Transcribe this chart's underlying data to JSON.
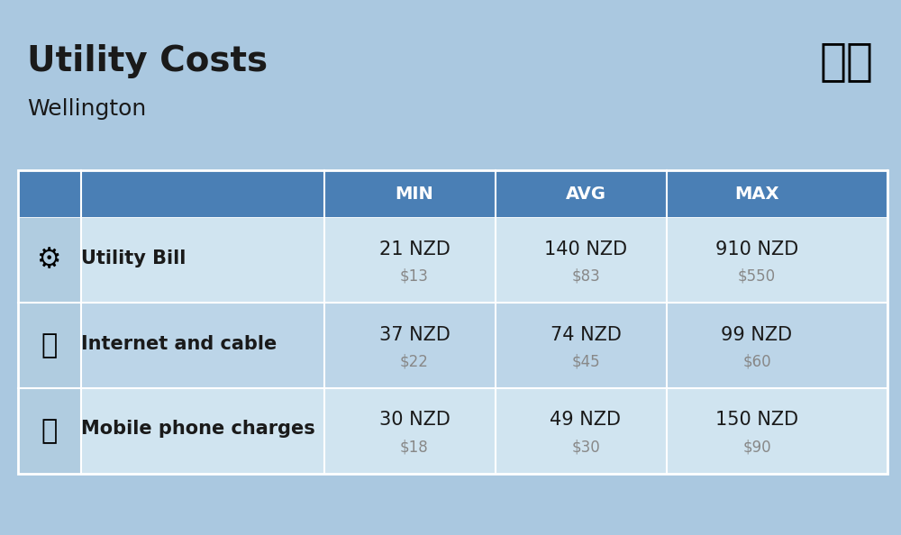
{
  "title": "Utility Costs",
  "subtitle": "Wellington",
  "background_color": "#aac8e0",
  "header_bg_color": "#4a7fb5",
  "header_text_color": "#ffffff",
  "row_colors": [
    "#d0e4f0",
    "#bcd5e8"
  ],
  "icon_col_color": "#b0cce0",
  "table_border_color": "#4a7fb5",
  "columns": [
    "",
    "",
    "MIN",
    "AVG",
    "MAX"
  ],
  "rows": [
    {
      "label": "Utility Bill",
      "min_nzd": "21 NZD",
      "min_usd": "$13",
      "avg_nzd": "140 NZD",
      "avg_usd": "$83",
      "max_nzd": "910 NZD",
      "max_usd": "$550"
    },
    {
      "label": "Internet and cable",
      "min_nzd": "37 NZD",
      "min_usd": "$22",
      "avg_nzd": "74 NZD",
      "avg_usd": "$45",
      "max_nzd": "99 NZD",
      "max_usd": "$60"
    },
    {
      "label": "Mobile phone charges",
      "min_nzd": "30 NZD",
      "min_usd": "$18",
      "avg_nzd": "49 NZD",
      "avg_usd": "$30",
      "max_nzd": "150 NZD",
      "max_usd": "$90"
    }
  ],
  "title_fontsize": 28,
  "subtitle_fontsize": 18,
  "header_fontsize": 14,
  "cell_fontsize": 15,
  "cell_sub_fontsize": 12,
  "label_fontsize": 15,
  "nzd_text_color": "#1a1a1a",
  "usd_text_color": "#888888",
  "label_text_color": "#1a1a1a",
  "flag_emoji": "🇳🇿"
}
